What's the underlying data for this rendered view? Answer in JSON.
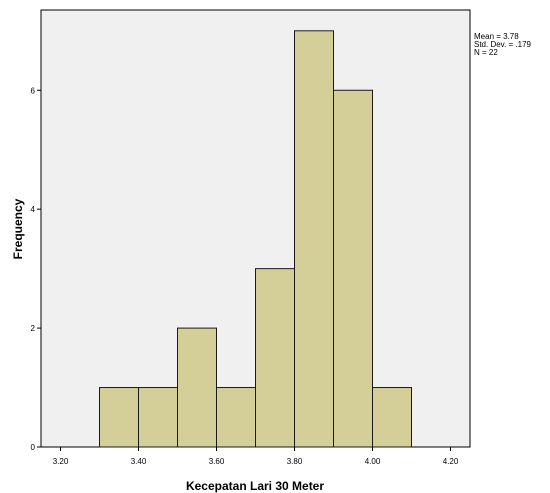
{
  "chart_data": {
    "type": "bar",
    "subtype": "histogram",
    "xlabel": "Kecepatan Lari 30 Meter",
    "ylabel": "Frequency",
    "bins": [
      {
        "start": 3.3,
        "end": 3.4,
        "count": 1
      },
      {
        "start": 3.4,
        "end": 3.5,
        "count": 1
      },
      {
        "start": 3.5,
        "end": 3.6,
        "count": 2
      },
      {
        "start": 3.6,
        "end": 3.7,
        "count": 1
      },
      {
        "start": 3.7,
        "end": 3.8,
        "count": 3
      },
      {
        "start": 3.8,
        "end": 3.9,
        "count": 7
      },
      {
        "start": 3.9,
        "end": 4.0,
        "count": 6
      },
      {
        "start": 4.0,
        "end": 4.1,
        "count": 1
      }
    ],
    "xticks": [
      "3.20",
      "3.40",
      "3.60",
      "3.80",
      "4.00",
      "4.20"
    ],
    "xtick_values": [
      3.2,
      3.4,
      3.6,
      3.8,
      4.0,
      4.2
    ],
    "yticks": [
      "0",
      "2",
      "4",
      "6"
    ],
    "ytick_values": [
      0,
      2,
      4,
      6
    ],
    "xlim": [
      3.15,
      4.25
    ],
    "ylim": [
      0,
      7.35
    ],
    "grid": false,
    "colors": {
      "bar_fill": "#d4cf98",
      "bar_stroke": "#1a1a1a",
      "plot_background": "#f0f0f0"
    }
  },
  "stats": {
    "mean": "Mean = 3.78",
    "std": "Std. Dev. = .179",
    "n": "N = 22"
  }
}
